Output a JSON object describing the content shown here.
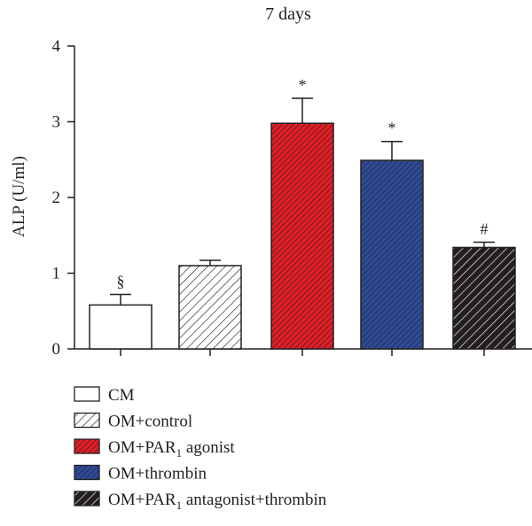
{
  "chart_data": {
    "type": "bar",
    "title": "7 days",
    "xlabel": "",
    "ylabel": "ALP (U/ml)",
    "ylim": [
      0,
      4
    ],
    "yticks": [
      "0",
      "1",
      "2",
      "3",
      "4"
    ],
    "grid": false,
    "legend_position": "bottom",
    "categories": [
      "CM",
      "OM+control",
      "OM+PAR1 agonist",
      "OM+thrombin",
      "OM+PAR1 antagonist+thrombin"
    ],
    "values": [
      0.58,
      1.1,
      2.98,
      2.49,
      1.34
    ],
    "errors": [
      0.14,
      0.07,
      0.33,
      0.25,
      0.07
    ],
    "annotations": [
      "§",
      "",
      "*",
      "*",
      "#"
    ],
    "styles": [
      {
        "fill": "#ffffff",
        "hatch": "none",
        "hatch_color": "#231f20"
      },
      {
        "fill": "#ffffff",
        "hatch": "diagonal-sparse",
        "hatch_color": "#231f20"
      },
      {
        "fill": "#e31e24",
        "hatch": "diagonal-dense",
        "hatch_color": "#231f20"
      },
      {
        "fill": "#2e4b9b",
        "hatch": "diagonal-dense",
        "hatch_color": "#231f20"
      },
      {
        "fill": "#231f20",
        "hatch": "diagonal-sparse",
        "hatch_color": "#ffffff"
      }
    ],
    "legend": [
      {
        "label": "CM"
      },
      {
        "label": "OM+control"
      },
      {
        "label": "OM+PAR",
        "sub": "1",
        "tail": " agonist"
      },
      {
        "label": "OM+thrombin"
      },
      {
        "label": "OM+PAR",
        "sub": "1",
        "tail": " antagonist+thrombin"
      }
    ]
  }
}
